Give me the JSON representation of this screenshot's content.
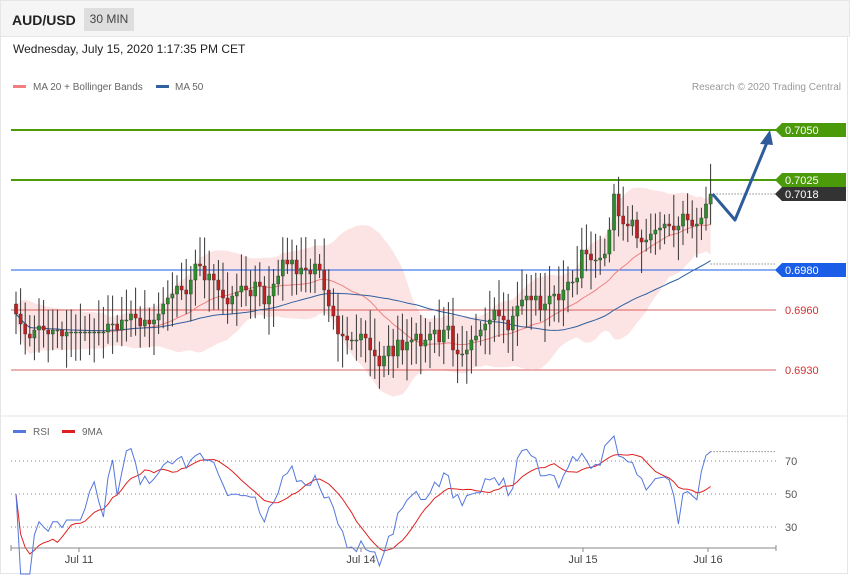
{
  "header": {
    "symbol": "AUD/USD",
    "timeframe": "30 MIN",
    "datetime": "Wednesday, July 15, 2020 1:17:35 PM CET"
  },
  "legend": {
    "ma20": "MA 20 + Bollinger Bands",
    "ma50": "MA 50",
    "ma20_color": "#f08080",
    "ma50_color": "#3060a0",
    "credit": "Research © 2020 Trading Central"
  },
  "chart_data": [
    {
      "type": "candlestick",
      "title": "AUD/USD 30 MIN",
      "ylim": [
        0.6915,
        0.7062
      ],
      "x_ticks": [
        "Jul 11",
        "Jul 14",
        "Jul 15",
        "Jul 16"
      ],
      "levels": [
        {
          "value": 0.705,
          "label": "0.7050",
          "color": "#4a9a0a",
          "style": "resistance",
          "tag": "filled"
        },
        {
          "value": 0.7025,
          "label": "0.7025",
          "color": "#4a9a0a",
          "style": "resistance",
          "tag": "filled"
        },
        {
          "value": 0.7018,
          "label": "0.7018",
          "color": "#333333",
          "style": "current",
          "tag": "filled"
        },
        {
          "value": 0.698,
          "label": "0.6980",
          "color": "#1a5ee8",
          "style": "pivot",
          "tag": "filled"
        },
        {
          "value": 0.696,
          "label": "0.6960",
          "color": "#d03030",
          "style": "support",
          "tag": "text"
        },
        {
          "value": 0.693,
          "label": "0.6930",
          "color": "#d03030",
          "style": "support",
          "tag": "text"
        }
      ],
      "close": [
        0.6958,
        0.6953,
        0.6948,
        0.6946,
        0.695,
        0.6952,
        0.695,
        0.6948,
        0.695,
        0.695,
        0.6947,
        0.6949,
        0.6949,
        0.6949,
        0.6949,
        0.6949,
        0.6949,
        0.6949,
        0.6949,
        0.6949,
        0.6953,
        0.6953,
        0.695,
        0.6955,
        0.6955,
        0.6958,
        0.6956,
        0.6952,
        0.6955,
        0.6953,
        0.6955,
        0.6958,
        0.6963,
        0.6966,
        0.6968,
        0.6972,
        0.697,
        0.6968,
        0.6975,
        0.6983,
        0.6982,
        0.6975,
        0.6978,
        0.6975,
        0.697,
        0.6966,
        0.6963,
        0.6967,
        0.6969,
        0.6972,
        0.697,
        0.6967,
        0.6974,
        0.6972,
        0.6963,
        0.6967,
        0.6973,
        0.6977,
        0.6985,
        0.6983,
        0.6985,
        0.6978,
        0.6981,
        0.698,
        0.6978,
        0.6983,
        0.698,
        0.697,
        0.6962,
        0.6957,
        0.6948,
        0.6947,
        0.6945,
        0.6945,
        0.6945,
        0.6948,
        0.6946,
        0.694,
        0.6937,
        0.6932,
        0.6937,
        0.6942,
        0.6937,
        0.6945,
        0.694,
        0.6944,
        0.6945,
        0.6948,
        0.6942,
        0.6945,
        0.6948,
        0.695,
        0.6944,
        0.695,
        0.6952,
        0.694,
        0.6938,
        0.6938,
        0.694,
        0.6945,
        0.6947,
        0.695,
        0.6953,
        0.6955,
        0.696,
        0.6957,
        0.6955,
        0.695,
        0.6957,
        0.6962,
        0.6965,
        0.6967,
        0.6965,
        0.6967,
        0.696,
        0.6963,
        0.6967,
        0.6968,
        0.6965,
        0.697,
        0.6974,
        0.6974,
        0.6976,
        0.699,
        0.6988,
        0.6985,
        0.6985,
        0.6986,
        0.6988,
        0.7,
        0.7018,
        0.7007,
        0.7003,
        0.7002,
        0.7005,
        0.6996,
        0.6994,
        0.6995,
        0.6998,
        0.7,
        0.7001,
        0.7003,
        0.7002,
        0.7,
        0.7002,
        0.7008,
        0.7005,
        0.7002,
        0.7003,
        0.7006,
        0.7013,
        0.7018
      ]
    },
    {
      "type": "line",
      "title": "RSI",
      "series": [
        {
          "name": "RSI",
          "color": "#5577dd"
        },
        {
          "name": "9MA",
          "color": "#e02020"
        }
      ],
      "levels": [
        70,
        50,
        30
      ]
    }
  ]
}
